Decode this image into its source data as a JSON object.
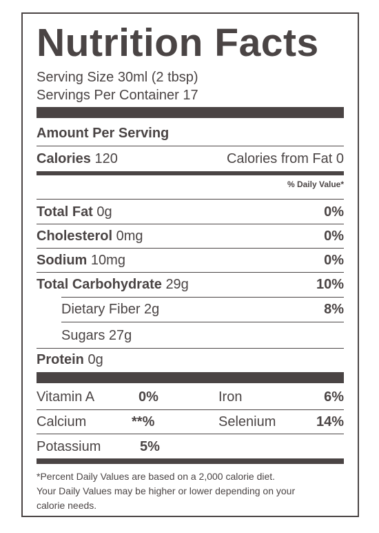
{
  "title": "Nutrition Facts",
  "serving_size": "Serving Size 30ml (2 tbsp)",
  "servings_per_container": "Servings Per Container 17",
  "amount_per_serving": "Amount Per Serving",
  "calories": {
    "label": "Calories",
    "value": "120",
    "from_fat": "Calories from Fat 0"
  },
  "daily_value_header": "% Daily Value*",
  "nutrients": {
    "total_fat": {
      "label": "Total Fat",
      "amount": "0g",
      "dv": "0%"
    },
    "cholesterol": {
      "label": "Cholesterol",
      "amount": "0mg",
      "dv": "0%"
    },
    "sodium": {
      "label": "Sodium",
      "amount": "10mg",
      "dv": "0%"
    },
    "total_carbohydrate": {
      "label": "Total Carbohydrate",
      "amount": "29g",
      "dv": "10%"
    },
    "dietary_fiber": {
      "label": "Dietary Fiber 2g",
      "dv": "8%"
    },
    "sugars": {
      "label": "Sugars 27g"
    },
    "protein": {
      "label": "Protein",
      "amount": "0g"
    }
  },
  "vitamins": {
    "vitamin_a": {
      "label": "Vitamin A",
      "dv": "0%"
    },
    "iron": {
      "label": "Iron",
      "dv": "6%"
    },
    "calcium": {
      "label": "Calcium",
      "dv": "**%"
    },
    "selenium": {
      "label": "Selenium",
      "dv": "14%"
    },
    "potassium": {
      "label": "Potassium",
      "dv": "5%"
    }
  },
  "footnote": {
    "line1": "*Percent Daily Values are based on a 2,000 calorie diet.",
    "line2": "Your Daily Values may be higher or lower depending on your",
    "line3": "calorie needs."
  }
}
